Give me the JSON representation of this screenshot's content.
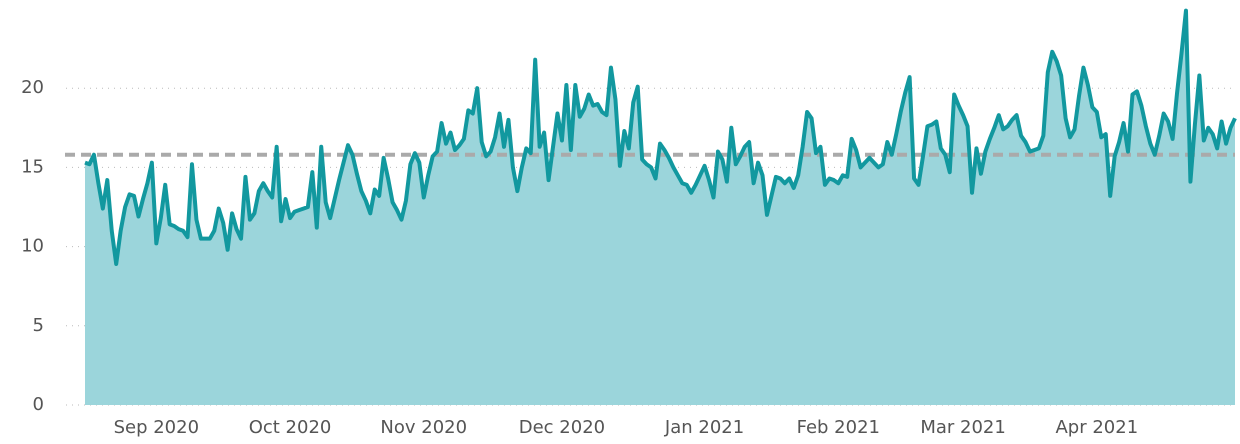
{
  "chart_data": {
    "type": "area",
    "categories": [
      null,
      null,
      null,
      null,
      null,
      null,
      null,
      null,
      null,
      null,
      null,
      null,
      null,
      null,
      null,
      null,
      "Sep 2020",
      null,
      null,
      null,
      null,
      null,
      null,
      null,
      null,
      null,
      null,
      null,
      null,
      null,
      null,
      null,
      null,
      null,
      null,
      null,
      null,
      null,
      null,
      null,
      null,
      null,
      null,
      null,
      null,
      null,
      "Oct 2020",
      null,
      null,
      null,
      null,
      null,
      null,
      null,
      null,
      null,
      null,
      null,
      null,
      null,
      null,
      null,
      null,
      null,
      null,
      null,
      null,
      null,
      null,
      null,
      null,
      null,
      null,
      null,
      null,
      null,
      "Nov 2020",
      null,
      null,
      null,
      null,
      null,
      null,
      null,
      null,
      null,
      null,
      null,
      null,
      null,
      null,
      null,
      null,
      null,
      null,
      null,
      null,
      null,
      null,
      null,
      null,
      null,
      null,
      null,
      null,
      null,
      null,
      "Dec 2020",
      null,
      null,
      null,
      null,
      null,
      null,
      null,
      null,
      null,
      null,
      null,
      null,
      null,
      null,
      null,
      null,
      null,
      null,
      null,
      null,
      null,
      null,
      null,
      null,
      null,
      null,
      null,
      null,
      null,
      null,
      null,
      "Jan 2021",
      null,
      null,
      null,
      null,
      null,
      null,
      null,
      null,
      null,
      null,
      null,
      null,
      null,
      null,
      null,
      null,
      null,
      null,
      null,
      null,
      null,
      null,
      null,
      null,
      null,
      null,
      null,
      null,
      null,
      "Feb 2021",
      null,
      null,
      null,
      null,
      null,
      null,
      null,
      null,
      null,
      null,
      null,
      null,
      null,
      null,
      null,
      null,
      null,
      null,
      null,
      null,
      null,
      null,
      null,
      null,
      null,
      null,
      null,
      "Mar 2021",
      null,
      null,
      null,
      null,
      null,
      null,
      null,
      null,
      null,
      null,
      null,
      null,
      null,
      null,
      null,
      null,
      null,
      null,
      null,
      null,
      null,
      null,
      null,
      null,
      null,
      null,
      null,
      null,
      null,
      "Apr 2021",
      null,
      null,
      null,
      null,
      null,
      null,
      null,
      null,
      null,
      null,
      null,
      null,
      null,
      null,
      null,
      null,
      null,
      null,
      null,
      null,
      null,
      null,
      null,
      null,
      null,
      null,
      null,
      null,
      null,
      null,
      null
    ],
    "series": [
      {
        "color": "#12989f",
        "fill": "#9bd5db",
        "values": [
          15.3,
          15.2,
          15.8,
          14,
          12.4,
          14.2,
          11,
          8.9,
          11,
          12.5,
          13.3,
          13.2,
          11.9,
          13,
          14,
          15.3,
          10.2,
          11.8,
          13.9,
          11.4,
          11.3,
          11.1,
          11,
          10.6,
          15.2,
          11.7,
          10.5,
          10.5,
          10.5,
          11,
          12.4,
          11.5,
          9.8,
          12.1,
          11.1,
          10.5,
          14.4,
          11.7,
          12.1,
          13.5,
          14,
          13.5,
          13.1,
          16.3,
          11.6,
          13,
          11.8,
          12.2,
          12.3,
          12.4,
          12.5,
          14.7,
          11.2,
          16.3,
          12.8,
          11.8,
          13,
          14.2,
          15.3,
          16.4,
          15.8,
          14.6,
          13.5,
          12.9,
          12.1,
          13.6,
          13.2,
          15.6,
          14.3,
          12.8,
          12.3,
          11.7,
          12.9,
          15.2,
          15.9,
          15.3,
          13.1,
          14.5,
          15.7,
          16,
          17.8,
          16.5,
          17.2,
          16.1,
          16.4,
          16.8,
          18.6,
          18.4,
          20,
          16.6,
          15.7,
          16,
          16.9,
          18.4,
          16.3,
          18,
          15,
          13.5,
          15,
          16.2,
          15.9,
          21.8,
          16.3,
          17.2,
          14.2,
          16.3,
          18.4,
          16.7,
          20.2,
          16.1,
          20.2,
          18.2,
          18.7,
          19.6,
          18.9,
          19,
          18.5,
          18.3,
          21.3,
          19.3,
          15.1,
          17.3,
          16.2,
          19.1,
          20.1,
          15.5,
          15.2,
          15,
          14.3,
          16.5,
          16.1,
          15.6,
          15,
          14.5,
          14,
          13.9,
          13.4,
          13.9,
          14.5,
          15.1,
          14.2,
          13.1,
          16,
          15.5,
          14.1,
          17.5,
          15.2,
          15.7,
          16.3,
          16.6,
          14,
          15.3,
          14.5,
          12,
          13.2,
          14.4,
          14.3,
          14,
          14.3,
          13.7,
          14.5,
          16.3,
          18.5,
          18.1,
          15.9,
          16.3,
          13.9,
          14.3,
          14.2,
          14,
          14.5,
          14.4,
          16.8,
          16.1,
          15,
          15.3,
          15.6,
          15.3,
          15,
          15.2,
          16.6,
          15.8,
          17.1,
          18.5,
          19.7,
          20.7,
          14.3,
          13.9,
          15.7,
          17.6,
          17.7,
          17.9,
          16.2,
          15.8,
          14.7,
          19.6,
          18.9,
          18.3,
          17.6,
          13.4,
          16.2,
          14.6,
          16,
          16.8,
          17.5,
          18.3,
          17.4,
          17.6,
          18,
          18.3,
          17,
          16.6,
          16,
          16.1,
          16.2,
          17,
          21,
          22.3,
          21.7,
          20.8,
          18.1,
          16.9,
          17.4,
          19.5,
          21.3,
          20.2,
          18.8,
          18.5,
          16.9,
          17.1,
          13.2,
          15.7,
          16.6,
          17.8,
          16,
          19.6,
          19.8,
          18.9,
          17.6,
          16.5,
          15.8,
          17,
          18.4,
          17.9,
          16.8,
          19.7,
          22.2,
          24.9,
          14.1,
          17.7,
          20.8,
          16.7,
          17.5,
          17.1,
          16.2,
          17.9,
          16.5,
          17.5,
          18.1
        ]
      }
    ],
    "ylim": [
      0,
      25
    ],
    "yticks": [
      0,
      5,
      10,
      15,
      20
    ],
    "grid": true,
    "reference_line": {
      "value": 15.8,
      "color": "#aaaaaa"
    }
  }
}
